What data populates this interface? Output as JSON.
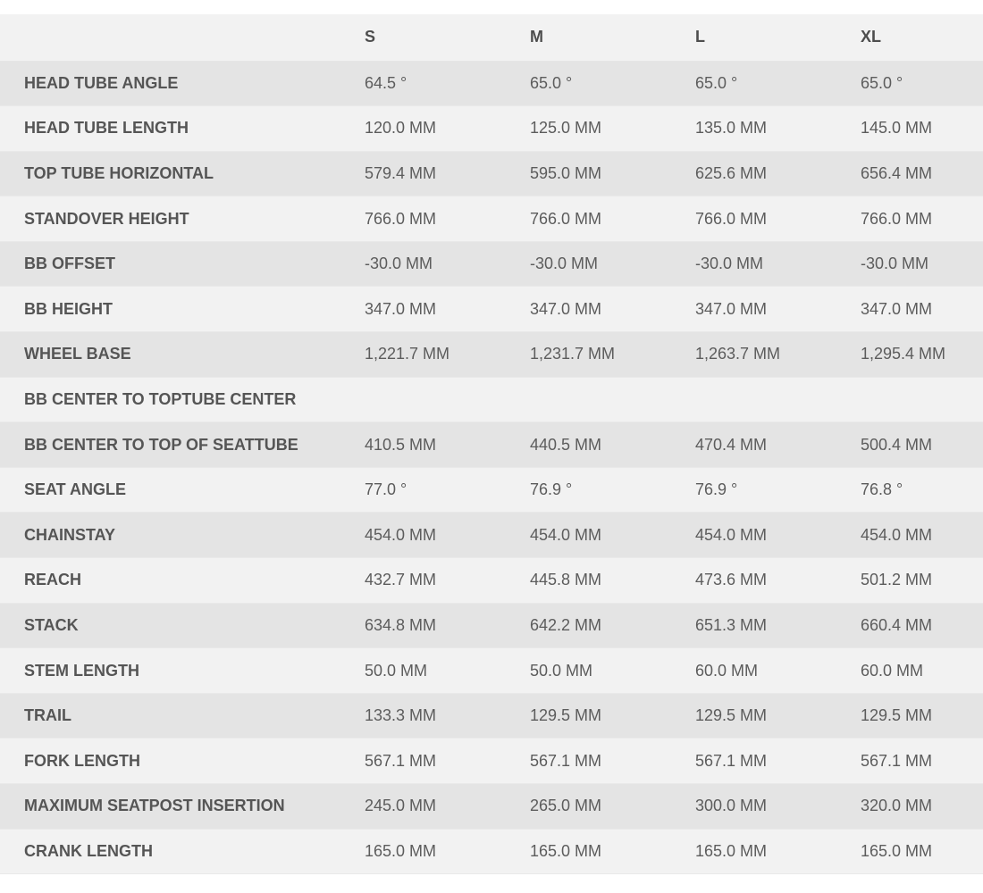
{
  "table": {
    "headers": [
      "",
      "S",
      "M",
      "L",
      "XL"
    ],
    "rows": [
      {
        "label": "HEAD TUBE ANGLE",
        "values": [
          "64.5 °",
          "65.0 °",
          "65.0 °",
          "65.0 °"
        ]
      },
      {
        "label": "HEAD TUBE LENGTH",
        "values": [
          "120.0 MM",
          "125.0 MM",
          "135.0 MM",
          "145.0 MM"
        ]
      },
      {
        "label": "TOP TUBE HORIZONTAL",
        "values": [
          "579.4 MM",
          "595.0 MM",
          "625.6 MM",
          "656.4 MM"
        ]
      },
      {
        "label": "STANDOVER HEIGHT",
        "values": [
          "766.0 MM",
          "766.0 MM",
          "766.0 MM",
          "766.0 MM"
        ]
      },
      {
        "label": "BB OFFSET",
        "values": [
          "-30.0 MM",
          "-30.0 MM",
          "-30.0 MM",
          "-30.0 MM"
        ]
      },
      {
        "label": "BB HEIGHT",
        "values": [
          "347.0 MM",
          "347.0 MM",
          "347.0 MM",
          "347.0 MM"
        ]
      },
      {
        "label": "WHEEL BASE",
        "values": [
          "1,221.7 MM",
          "1,231.7 MM",
          "1,263.7 MM",
          "1,295.4 MM"
        ]
      },
      {
        "label": "BB CENTER TO TOPTUBE CENTER",
        "values": [
          "",
          "",
          "",
          ""
        ]
      },
      {
        "label": "BB CENTER TO TOP OF SEATTUBE",
        "values": [
          "410.5 MM",
          "440.5 MM",
          "470.4 MM",
          "500.4 MM"
        ]
      },
      {
        "label": "SEAT ANGLE",
        "values": [
          "77.0 °",
          "76.9 °",
          "76.9 °",
          "76.8 °"
        ]
      },
      {
        "label": "CHAINSTAY",
        "values": [
          "454.0 MM",
          "454.0 MM",
          "454.0 MM",
          "454.0 MM"
        ]
      },
      {
        "label": "REACH",
        "values": [
          "432.7 MM",
          "445.8 MM",
          "473.6 MM",
          "501.2 MM"
        ]
      },
      {
        "label": "STACK",
        "values": [
          "634.8 MM",
          "642.2 MM",
          "651.3 MM",
          "660.4 MM"
        ]
      },
      {
        "label": "STEM LENGTH",
        "values": [
          "50.0 MM",
          "50.0 MM",
          "60.0 MM",
          "60.0 MM"
        ]
      },
      {
        "label": "TRAIL",
        "values": [
          "133.3 MM",
          "129.5 MM",
          "129.5 MM",
          "129.5 MM"
        ]
      },
      {
        "label": "FORK LENGTH",
        "values": [
          "567.1 MM",
          "567.1 MM",
          "567.1 MM",
          "567.1 MM"
        ]
      },
      {
        "label": "MAXIMUM SEATPOST INSERTION",
        "values": [
          "245.0 MM",
          "265.0 MM",
          "300.0 MM",
          "320.0 MM"
        ]
      },
      {
        "label": "CRANK LENGTH",
        "values": [
          "165.0 MM",
          "165.0 MM",
          "165.0 MM",
          "165.0 MM"
        ]
      }
    ]
  }
}
